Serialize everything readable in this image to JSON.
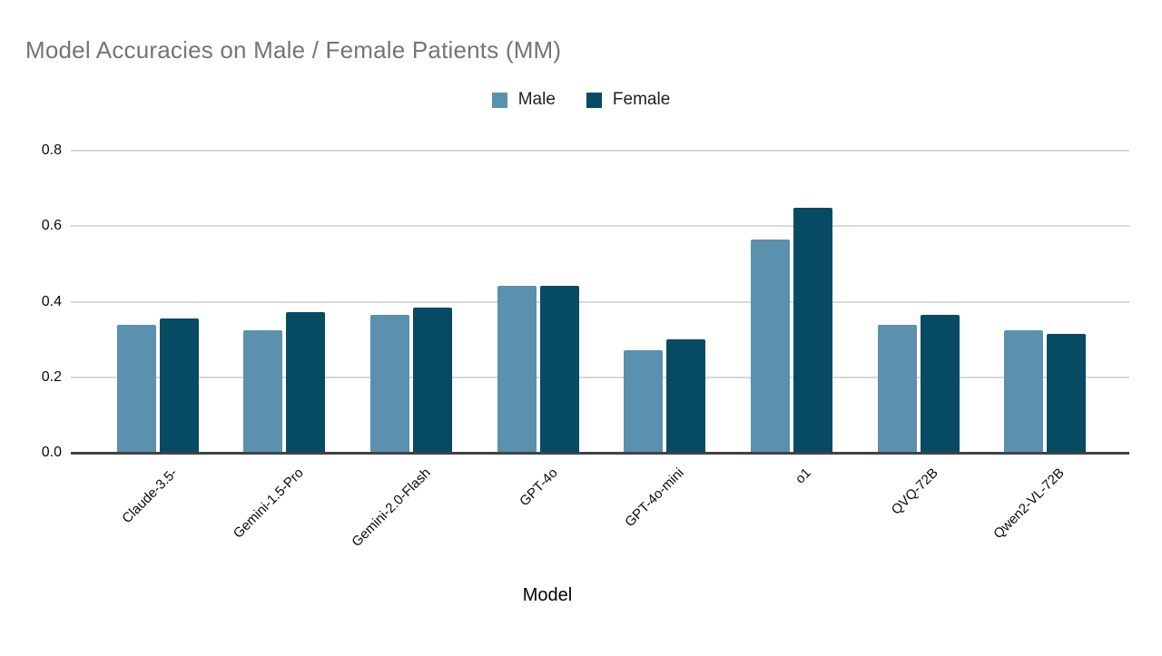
{
  "chart_data": {
    "type": "bar",
    "title": "Model Accuracies on Male / Female Patients (MM)",
    "xlabel": "Model",
    "ylabel": "",
    "categories": [
      "Claude-3.5-",
      "Gemini-1.5-Pro",
      "Gemini-2.0-Flash",
      "GPT-4o",
      "GPT-4o-mini",
      "o1",
      "QVQ-72B",
      "Qwen2-VL-72B"
    ],
    "series": [
      {
        "name": "Male",
        "color": "#5b90ae",
        "values": [
          0.34,
          0.325,
          0.366,
          0.443,
          0.272,
          0.565,
          0.339,
          0.325
        ]
      },
      {
        "name": "Female",
        "color": "#074a63",
        "values": [
          0.355,
          0.372,
          0.385,
          0.443,
          0.3,
          0.648,
          0.366,
          0.316
        ]
      }
    ],
    "ylim": [
      0,
      0.8
    ],
    "yticks": [
      "0.0",
      "0.2",
      "0.4",
      "0.6",
      "0.8"
    ],
    "grid": "horizontal",
    "legend_position": "top-center",
    "colors": {
      "male_bar": "#5b90ae",
      "female_bar": "#074a63",
      "gridline": "#d9d9d9",
      "axis_line": "#424242",
      "title_text": "#757575",
      "tick_text": "#0a0a0a"
    }
  }
}
